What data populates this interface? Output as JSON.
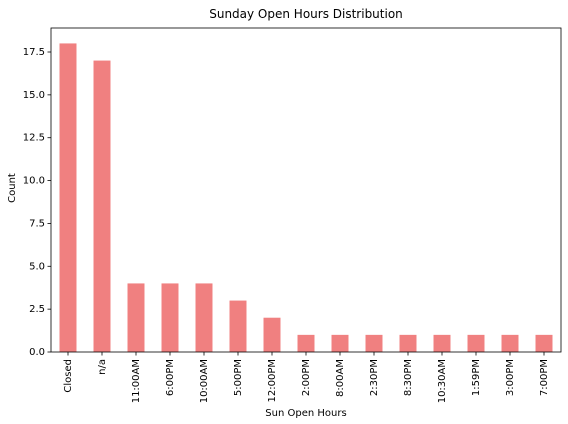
{
  "chart_data": {
    "type": "bar",
    "title": "Sunday Open Hours Distribution",
    "xlabel": "Sun Open Hours",
    "ylabel": "Count",
    "categories": [
      "Closed",
      "n/a",
      "11:00AM",
      "6:00PM",
      "10:00AM",
      "5:00PM",
      "12:00PM",
      "2:00PM",
      "8:00AM",
      "2:30PM",
      "8:30PM",
      "10:30AM",
      "1:59PM",
      "3:00PM",
      "7:00PM"
    ],
    "values": [
      18,
      17,
      4,
      4,
      4,
      3,
      2,
      1,
      1,
      1,
      1,
      1,
      1,
      1,
      1
    ],
    "ylim": [
      0,
      18.9
    ],
    "yticks": [
      "0.0",
      "2.5",
      "5.0",
      "7.5",
      "10.0",
      "12.5",
      "15.0",
      "17.5"
    ],
    "grid": false,
    "bar_color": "#F08080"
  }
}
